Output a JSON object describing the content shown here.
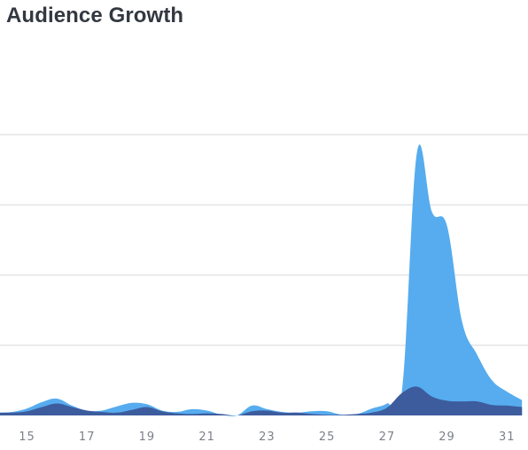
{
  "title": "Audience Growth",
  "chart_data": {
    "type": "area",
    "title": "Audience Growth",
    "xlabel": "",
    "ylabel": "",
    "x": [
      14,
      14.5,
      15,
      15.5,
      16,
      16.5,
      17,
      17.5,
      18,
      18.5,
      19,
      19.5,
      20,
      20.5,
      21,
      21.5,
      22,
      22.5,
      23,
      23.5,
      24,
      24.5,
      25,
      25.5,
      26,
      26.5,
      27,
      27.5,
      28,
      28.5,
      29,
      29.5,
      30,
      30.5,
      31,
      31.5
    ],
    "x_tick_labels": [
      "15",
      "17",
      "19",
      "21",
      "23",
      "25",
      "27",
      "29",
      "31"
    ],
    "x_ticks": [
      15,
      17,
      19,
      21,
      23,
      25,
      27,
      29,
      31
    ],
    "xlim": [
      14.1,
      31.7
    ],
    "ylim": [
      0,
      400
    ],
    "y_gridlines": [
      100,
      200,
      300,
      400
    ],
    "grid": true,
    "legend": "none",
    "series": [
      {
        "color": "#56acee",
        "values": [
          4,
          5,
          10,
          19,
          24,
          14,
          7,
          7,
          13,
          18,
          16,
          7,
          5,
          9,
          7,
          1,
          0,
          14,
          9,
          5,
          4,
          6,
          6,
          1,
          2,
          10,
          17,
          36,
          375,
          290,
          270,
          134,
          87,
          50,
          34,
          22
        ]
      },
      {
        "color": "#3d5c9e",
        "values": [
          4,
          4,
          6,
          12,
          17,
          12,
          7,
          5,
          4,
          8,
          12,
          6,
          3,
          2,
          3,
          2,
          0,
          6,
          7,
          4,
          4,
          2,
          1,
          1,
          2,
          4,
          11,
          32,
          41,
          27,
          21,
          20,
          20,
          15,
          14,
          12
        ]
      }
    ]
  }
}
